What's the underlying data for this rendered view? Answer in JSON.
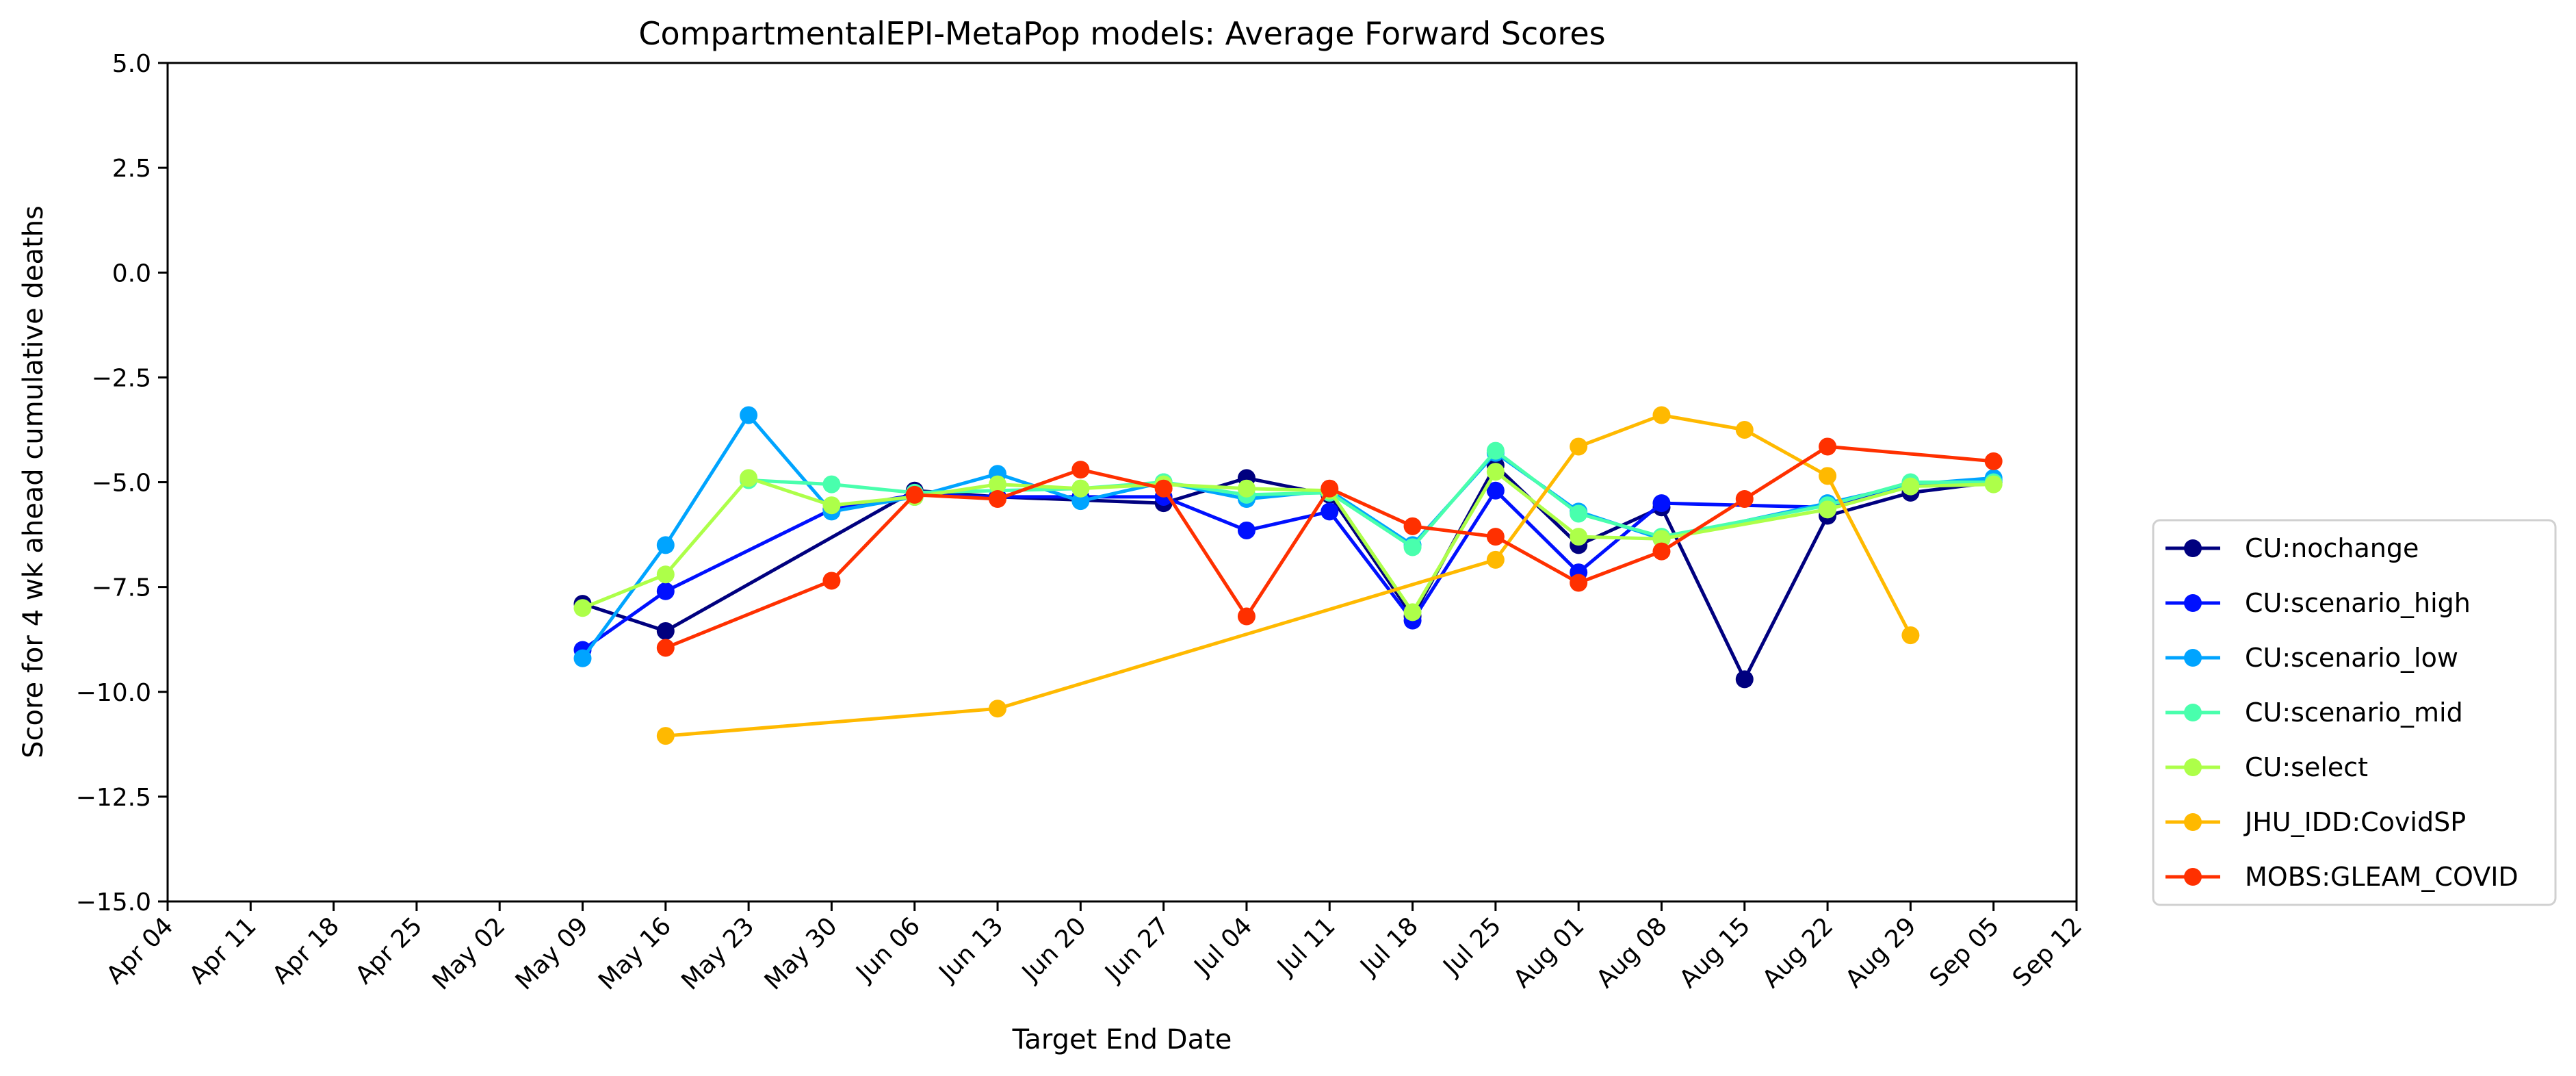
{
  "chart_data": {
    "type": "line",
    "title": "CompartmentalEPI-MetaPop models: Average Forward Scores",
    "xlabel": "Target End Date",
    "ylabel": "Score for 4 wk ahead cumulative deaths",
    "ylim": [
      -15.0,
      5.0
    ],
    "yticks": [
      "5.0",
      "2.5",
      "0.0",
      "−2.5",
      "−5.0",
      "−7.5",
      "−10.0",
      "−12.5",
      "−15.0"
    ],
    "xticks": [
      "Apr 04",
      "Apr 11",
      "Apr 18",
      "Apr 25",
      "May 02",
      "May 09",
      "May 16",
      "May 23",
      "May 30",
      "Jun 06",
      "Jun 13",
      "Jun 20",
      "Jun 27",
      "Jul 04",
      "Jul 11",
      "Jul 18",
      "Jul 25",
      "Aug 01",
      "Aug 08",
      "Aug 15",
      "Aug 22",
      "Aug 29",
      "Sep 05",
      "Sep 12"
    ],
    "legend_position": "right",
    "grid": false,
    "series": [
      {
        "name": "CU:nochange",
        "color": "#00007f",
        "points": [
          [
            "May 09",
            -7.9
          ],
          [
            "May 16",
            -8.55
          ],
          [
            "Jun 06",
            -5.2
          ],
          [
            "Jun 13",
            -5.35
          ],
          [
            "Jun 27",
            -5.5
          ],
          [
            "Jul 04",
            -4.9
          ],
          [
            "Jul 11",
            -5.3
          ],
          [
            "Jul 18",
            -8.2
          ],
          [
            "Jul 25",
            -4.6
          ],
          [
            "Aug 01",
            -6.5
          ],
          [
            "Aug 08",
            -5.6
          ],
          [
            "Aug 15",
            -9.7
          ],
          [
            "Aug 22",
            -5.8
          ],
          [
            "Aug 29",
            -5.25
          ],
          [
            "Sep 05",
            -5.0
          ]
        ]
      },
      {
        "name": "CU:scenario_high",
        "color": "#0010ff",
        "points": [
          [
            "May 09",
            -9.0
          ],
          [
            "May 16",
            -7.6
          ],
          [
            "May 30",
            -5.65
          ],
          [
            "Jun 06",
            -5.3
          ],
          [
            "Jun 13",
            -5.35
          ],
          [
            "Jun 20",
            -5.35
          ],
          [
            "Jun 27",
            -5.35
          ],
          [
            "Jul 04",
            -6.15
          ],
          [
            "Jul 11",
            -5.7
          ],
          [
            "Jul 18",
            -8.3
          ],
          [
            "Jul 25",
            -5.2
          ],
          [
            "Aug 01",
            -7.15
          ],
          [
            "Aug 08",
            -5.5
          ],
          [
            "Aug 22",
            -5.6
          ],
          [
            "Aug 29",
            -5.05
          ],
          [
            "Sep 05",
            -4.95
          ]
        ]
      },
      {
        "name": "CU:scenario_low",
        "color": "#00a4ff",
        "points": [
          [
            "May 09",
            -9.2
          ],
          [
            "May 16",
            -6.5
          ],
          [
            "May 23",
            -3.4
          ],
          [
            "May 30",
            -5.7
          ],
          [
            "Jun 06",
            -5.35
          ],
          [
            "Jun 13",
            -4.8
          ],
          [
            "Jun 20",
            -5.45
          ],
          [
            "Jun 27",
            -5.0
          ],
          [
            "Jul 04",
            -5.4
          ],
          [
            "Jul 11",
            -5.2
          ],
          [
            "Jul 18",
            -6.5
          ],
          [
            "Jul 25",
            -4.3
          ],
          [
            "Aug 01",
            -5.7
          ],
          [
            "Aug 08",
            -6.35
          ],
          [
            "Aug 22",
            -5.5
          ],
          [
            "Aug 29",
            -5.05
          ],
          [
            "Sep 05",
            -4.9
          ]
        ]
      },
      {
        "name": "CU:scenario_mid",
        "color": "#49ffad",
        "points": [
          [
            "May 23",
            -4.95
          ],
          [
            "May 30",
            -5.05
          ],
          [
            "Jun 06",
            -5.25
          ],
          [
            "Jun 20",
            -5.15
          ],
          [
            "Jun 27",
            -5.0
          ],
          [
            "Jul 04",
            -5.3
          ],
          [
            "Jul 11",
            -5.25
          ],
          [
            "Jul 18",
            -6.55
          ],
          [
            "Jul 25",
            -4.25
          ],
          [
            "Aug 01",
            -5.75
          ],
          [
            "Aug 08",
            -6.3
          ],
          [
            "Aug 22",
            -5.55
          ],
          [
            "Aug 29",
            -5.0
          ],
          [
            "Sep 05",
            -5.0
          ]
        ]
      },
      {
        "name": "CU:select",
        "color": "#adff49",
        "points": [
          [
            "May 09",
            -8.0
          ],
          [
            "May 16",
            -7.2
          ],
          [
            "May 23",
            -4.9
          ],
          [
            "May 30",
            -5.55
          ],
          [
            "Jun 06",
            -5.35
          ],
          [
            "Jun 13",
            -5.05
          ],
          [
            "Jun 20",
            -5.15
          ],
          [
            "Jun 27",
            -5.05
          ],
          [
            "Jul 04",
            -5.15
          ],
          [
            "Jul 11",
            -5.2
          ],
          [
            "Jul 18",
            -8.1
          ],
          [
            "Jul 25",
            -4.75
          ],
          [
            "Aug 01",
            -6.3
          ],
          [
            "Aug 08",
            -6.35
          ],
          [
            "Aug 22",
            -5.65
          ],
          [
            "Aug 29",
            -5.1
          ],
          [
            "Sep 05",
            -5.05
          ]
        ]
      },
      {
        "name": "JHU_IDD:CovidSP",
        "color": "#ffb900",
        "points": [
          [
            "May 16",
            -11.05
          ],
          [
            "Jun 13",
            -10.4
          ],
          [
            "Jul 25",
            -6.85
          ],
          [
            "Aug 01",
            -4.15
          ],
          [
            "Aug 08",
            -3.4
          ],
          [
            "Aug 15",
            -3.75
          ],
          [
            "Aug 22",
            -4.85
          ],
          [
            "Aug 29",
            -8.65
          ]
        ]
      },
      {
        "name": "MOBS:GLEAM_COVID",
        "color": "#ff3000",
        "points": [
          [
            "May 16",
            -8.95
          ],
          [
            "May 30",
            -7.35
          ],
          [
            "Jun 06",
            -5.3
          ],
          [
            "Jun 13",
            -5.4
          ],
          [
            "Jun 20",
            -4.7
          ],
          [
            "Jun 27",
            -5.15
          ],
          [
            "Jul 04",
            -8.2
          ],
          [
            "Jul 11",
            -5.15
          ],
          [
            "Jul 18",
            -6.05
          ],
          [
            "Jul 25",
            -6.3
          ],
          [
            "Aug 01",
            -7.4
          ],
          [
            "Aug 08",
            -6.65
          ],
          [
            "Aug 15",
            -5.4
          ],
          [
            "Aug 22",
            -4.15
          ],
          [
            "Sep 05",
            -4.5
          ]
        ]
      }
    ]
  }
}
